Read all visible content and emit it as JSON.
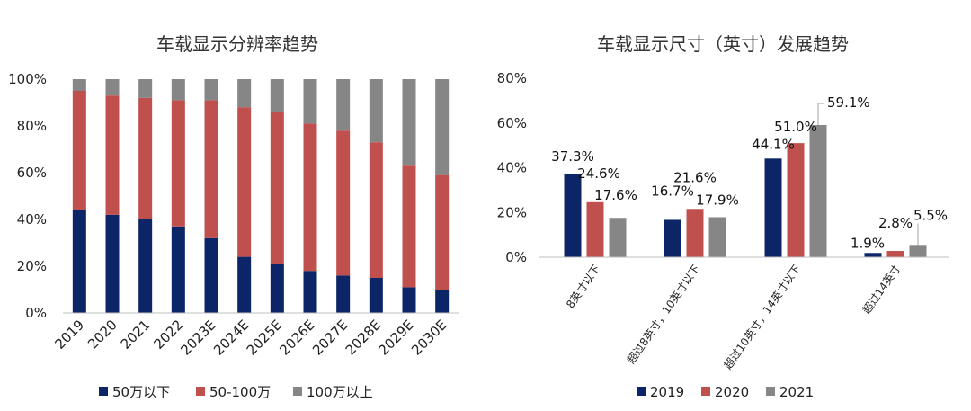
{
  "colors": {
    "navy": "#0b2566",
    "red": "#c0504d",
    "gray": "#868686"
  },
  "chart_data": [
    {
      "type": "bar",
      "stacked": true,
      "title": "车载显示分辨率趋势",
      "categories": [
        "2019",
        "2020",
        "2021",
        "2022",
        "2023E",
        "2024E",
        "2025E",
        "2026E",
        "2027E",
        "2028E",
        "2029E",
        "2030E"
      ],
      "series": [
        {
          "name": "50万以下",
          "values": [
            44,
            42,
            40,
            37,
            32,
            24,
            21,
            18,
            16,
            15,
            11,
            10
          ]
        },
        {
          "name": "50-100万",
          "values": [
            51,
            51,
            52,
            54,
            59,
            64,
            65,
            63,
            62,
            58,
            52,
            49
          ]
        },
        {
          "name": "100万以上",
          "values": [
            5,
            7,
            8,
            9,
            9,
            12,
            14,
            19,
            22,
            27,
            37,
            41
          ]
        }
      ],
      "y_ticks": [
        "0%",
        "20%",
        "40%",
        "60%",
        "80%",
        "100%"
      ],
      "ylim": [
        0,
        100
      ],
      "legend": "bottom",
      "grid": false
    },
    {
      "type": "bar",
      "title": "车载显示尺寸（英寸）发展趋势",
      "categories": [
        "8英寸以下",
        "超过8英寸，10英寸以下",
        "超过10英寸，14英寸以下",
        "超过14英寸"
      ],
      "series": [
        {
          "name": "2019",
          "values": [
            37.3,
            16.7,
            44.1,
            1.9
          ],
          "labels": [
            "37.3%",
            "16.7%",
            "44.1%",
            "1.9%"
          ]
        },
        {
          "name": "2020",
          "values": [
            24.6,
            21.6,
            51.0,
            2.8
          ],
          "labels": [
            "24.6%",
            "21.6%",
            "51.0%",
            "2.8%"
          ]
        },
        {
          "name": "2021",
          "values": [
            17.6,
            17.9,
            59.1,
            5.5
          ],
          "labels": [
            "17.6%",
            "17.9%",
            "59.1%",
            "5.5%"
          ]
        }
      ],
      "y_ticks": [
        "0%",
        "20%",
        "40%",
        "60%",
        "80%"
      ],
      "ylim": [
        0,
        80
      ],
      "legend": "bottom",
      "grid": false
    }
  ]
}
